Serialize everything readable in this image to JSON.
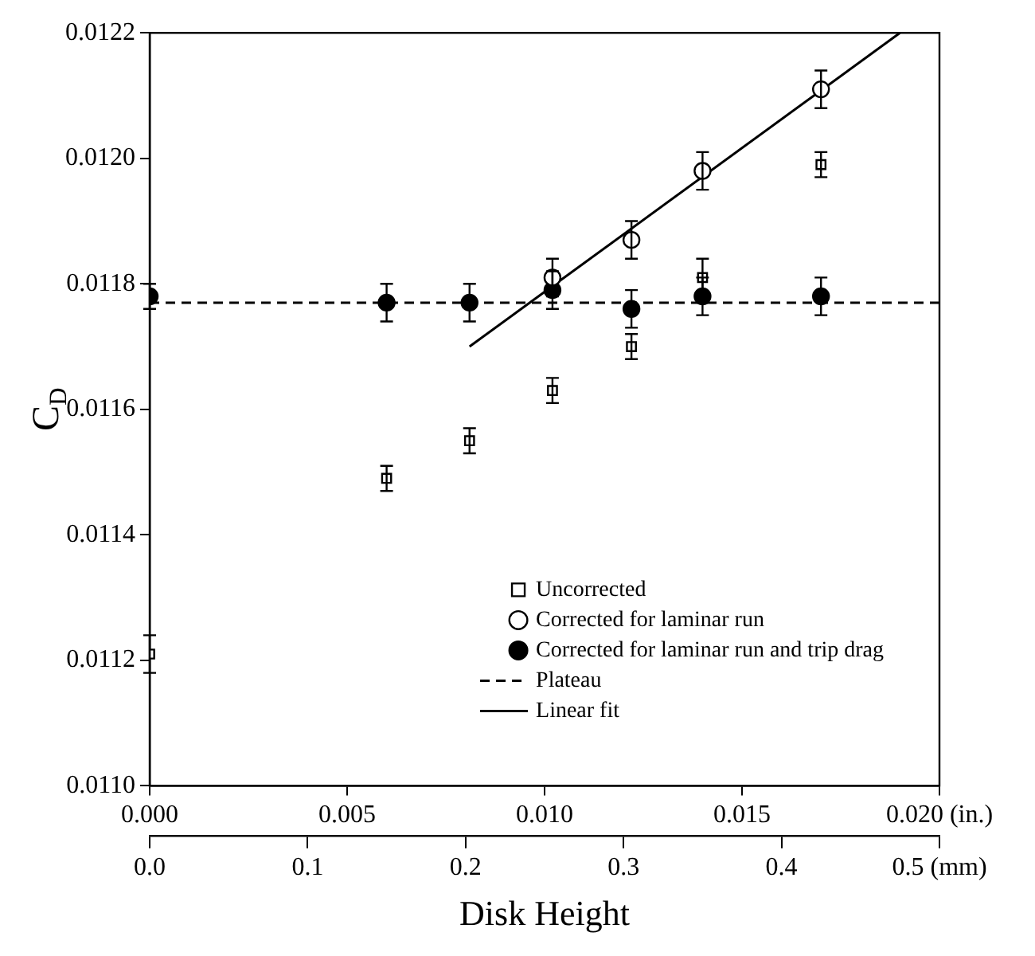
{
  "chart_data": {
    "type": "scatter",
    "xlabel": "Disk Height",
    "ylabel": "C$_{D}$",
    "xlim": [
      0,
      0.02
    ],
    "xticks": [
      {
        "value": 0,
        "label": "0.000"
      },
      {
        "value": 0.005,
        "label": "0.005"
      },
      {
        "value": 0.01,
        "label": "0.010"
      },
      {
        "value": 0.015,
        "label": "0.015"
      },
      {
        "value": 0.02,
        "label": "0.020 (in.)"
      }
    ],
    "x2lim": [
      0,
      0.5
    ],
    "x2ticks": [
      {
        "value": 0,
        "label": "0.0"
      },
      0.1,
      0.2,
      0.3,
      0.4,
      {
        "value": 0.5,
        "label": "0.5 (mm)"
      }
    ],
    "ylim": [
      0.011,
      0.0122
    ],
    "yticks": [
      {
        "value": 0.011,
        "label": "0.0110"
      },
      {
        "value": 0.0112,
        "label": "0.0112"
      },
      {
        "value": 0.0114,
        "label": "0.0114"
      },
      {
        "value": 0.0116,
        "label": "0.0116"
      },
      {
        "value": 0.0118,
        "label": "0.0118"
      },
      {
        "value": 0.012,
        "label": "0.0120"
      },
      {
        "value": 0.0122,
        "label": "0.0122"
      }
    ],
    "grid": false,
    "legend": "bottom right",
    "series": [
      {
        "name": "Uncorrected",
        "marker": "square",
        "color": "#ffffff",
        "x": [
          0,
          0.006,
          0.0081,
          0.0102,
          0.0122,
          0.014,
          0.017
        ],
        "values": [
          0.01121,
          0.01149,
          0.01155,
          0.01163,
          0.0117,
          0.01181,
          0.01199
        ],
        "errors": [
          3e-05,
          2e-05,
          2e-05,
          2e-05,
          2e-05,
          3e-05,
          2e-05
        ]
      },
      {
        "name": "Corrected for laminar run",
        "marker": "circle",
        "color": "#ffffff",
        "x": [
          0.0102,
          0.0122,
          0.014,
          0.017
        ],
        "values": [
          0.01181,
          0.01187,
          0.01198,
          0.01211
        ],
        "errors": [
          3e-05,
          3e-05,
          3e-05,
          3e-05
        ]
      },
      {
        "name": "Corrected for laminar run and trip drag",
        "marker": "circle",
        "color": "#000000",
        "x": [
          0,
          0.006,
          0.0081,
          0.0102,
          0.0122,
          0.014,
          0.017
        ],
        "values": [
          0.01178,
          0.01177,
          0.01177,
          0.01179,
          0.01176,
          0.01178,
          0.01178
        ],
        "errors": [
          2e-05,
          3e-05,
          3e-05,
          3e-05,
          3e-05,
          3e-05,
          3e-05
        ]
      },
      {
        "name": "Plateau",
        "type": "line",
        "marker": "none",
        "line_style": "dashed",
        "color": "#000000",
        "x": [
          0,
          0.02
        ],
        "values": [
          0.01177,
          0.01177
        ]
      },
      {
        "name": "Linear fit",
        "type": "line",
        "marker": "none",
        "line_style": "solid",
        "color": "#000000",
        "x": [
          0.0081,
          0.019
        ],
        "values": [
          0.0117,
          0.0122
        ]
      }
    ]
  }
}
